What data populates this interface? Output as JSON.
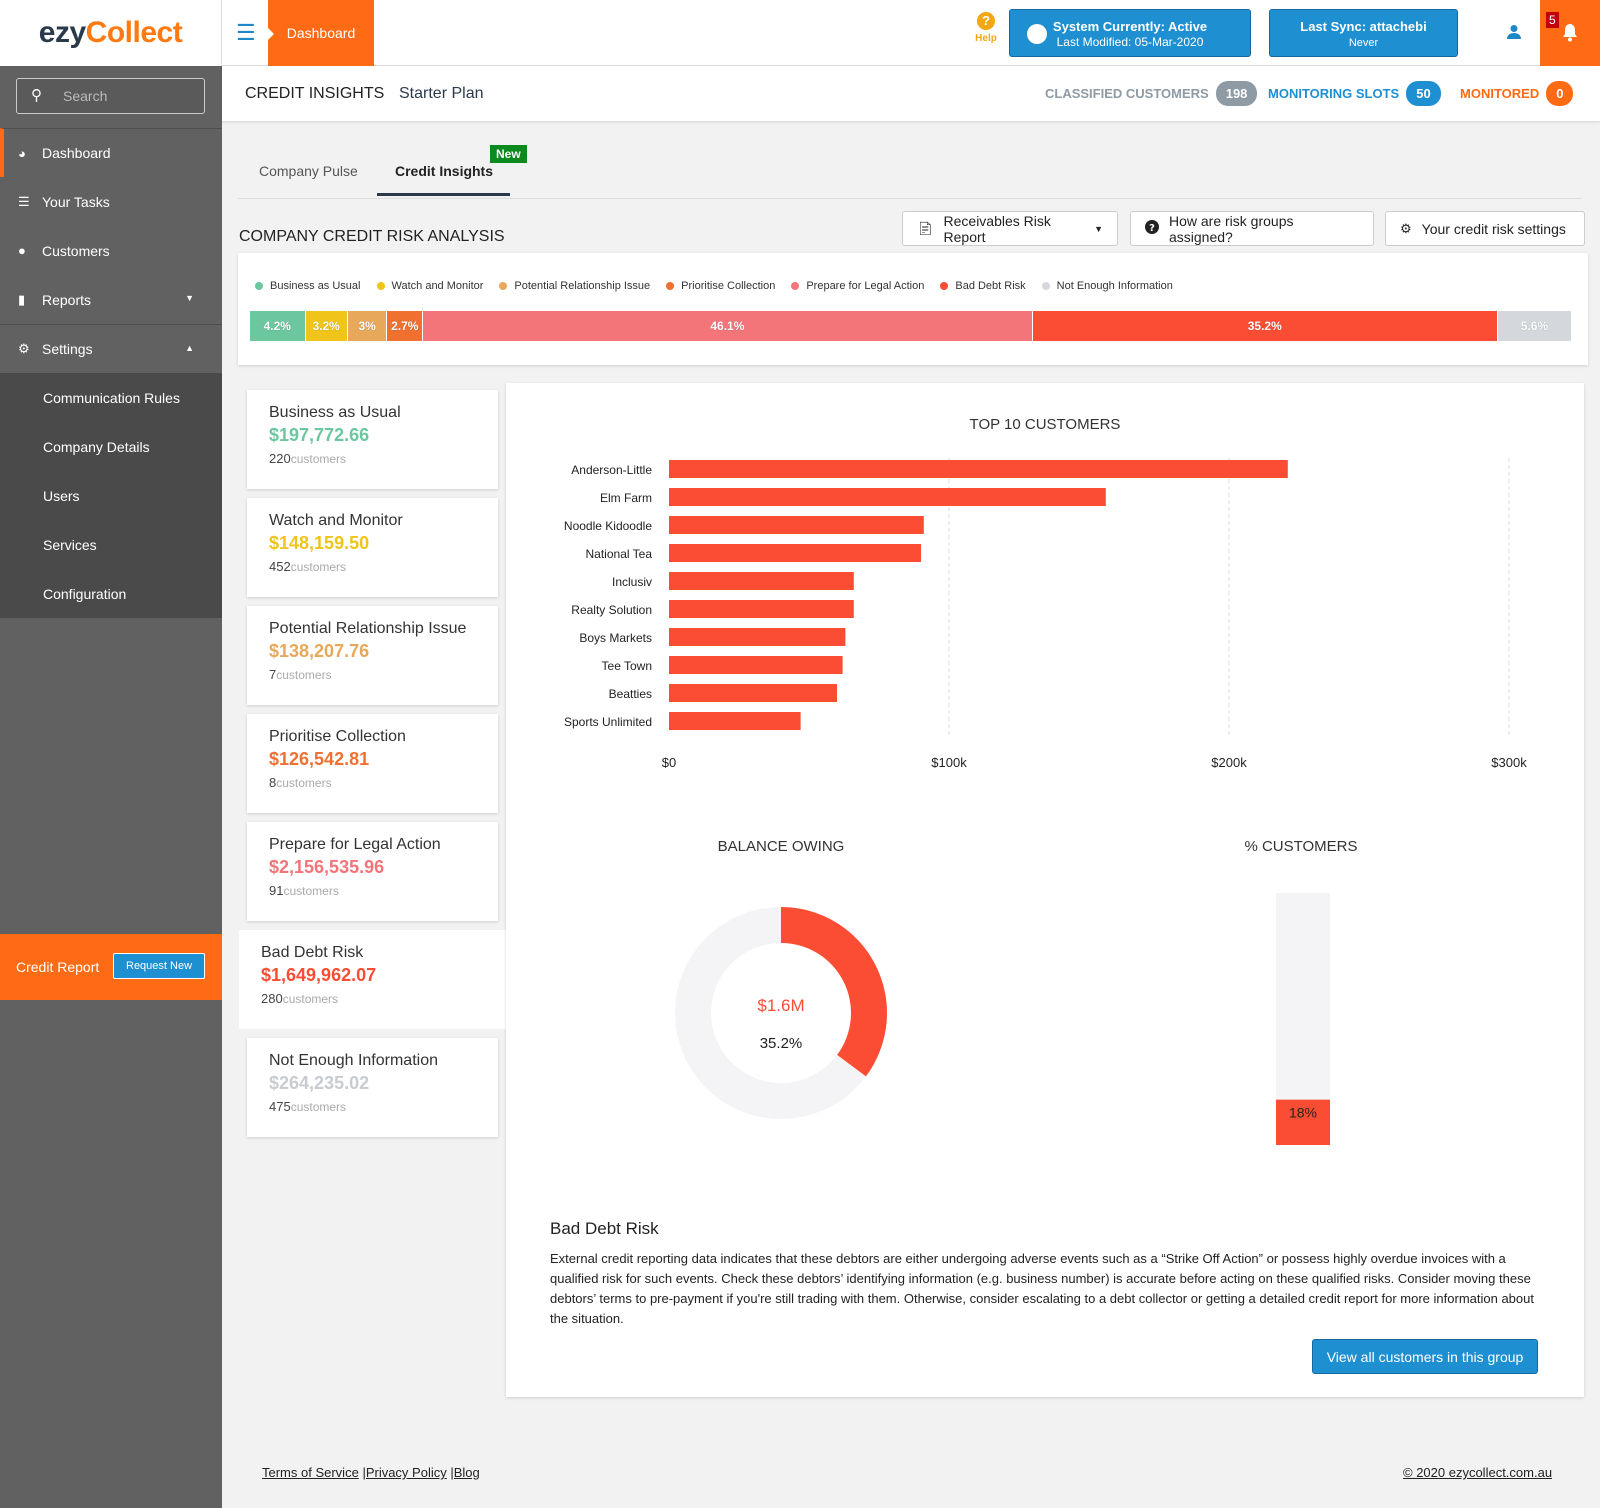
{
  "header": {
    "logo_part1": "ezy",
    "logo_part2": "Collect",
    "active_tab": "Dashboard",
    "help_label": "Help",
    "system_status_title": "System Currently: Active",
    "system_status_sub": "Last Modified: 05-Mar-2020",
    "sync_title": "Last Sync: attachebi",
    "sync_sub": "Never",
    "notification_count": "5"
  },
  "sidebar": {
    "search_placeholder": "Search",
    "items": [
      {
        "label": "Dashboard",
        "icon": "dashboard-icon"
      },
      {
        "label": "Your Tasks",
        "icon": "list-icon"
      },
      {
        "label": "Customers",
        "icon": "users-icon"
      },
      {
        "label": "Reports",
        "icon": "book-icon"
      },
      {
        "label": "Settings",
        "icon": "gears-icon"
      }
    ],
    "settings_sub": [
      "Communication Rules",
      "Company Details",
      "Users",
      "Services",
      "Configuration"
    ],
    "credit_report_label": "Credit Report",
    "request_new_label": "Request New"
  },
  "subheader": {
    "title": "CREDIT INSIGHTS",
    "plan": "Starter Plan",
    "classified_label": "CLASSIFIED CUSTOMERS",
    "classified_count": "198",
    "slots_label": "MONITORING SLOTS",
    "slots_count": "50",
    "monitored_label": "MONITORED",
    "monitored_count": "0"
  },
  "tabs": {
    "tab1": "Company Pulse",
    "tab2": "Credit Insights",
    "new_badge": "New"
  },
  "section": {
    "title": "COMPANY CREDIT RISK ANALYSIS",
    "btn_report": "Receivables Risk Report",
    "btn_help": "How are risk groups assigned?",
    "btn_settings": "Your credit risk settings"
  },
  "risk_groups": [
    {
      "name": "Business as Usual",
      "amount": "$197,772.66",
      "count": "220",
      "pct": 4.2,
      "pct_label": "4.2%",
      "color": "#6cc79f"
    },
    {
      "name": "Watch and Monitor",
      "amount": "$148,159.50",
      "count": "452",
      "pct": 3.2,
      "pct_label": "3.2%",
      "color": "#f0c419"
    },
    {
      "name": "Potential Relationship Issue",
      "amount": "$138,207.76",
      "count": "7",
      "pct": 3,
      "pct_label": "3%",
      "color": "#e8a85a"
    },
    {
      "name": "Prioritise Collection",
      "amount": "$126,542.81",
      "count": "8",
      "pct": 2.7,
      "pct_label": "2.7%",
      "color": "#f07030"
    },
    {
      "name": "Prepare for Legal Action",
      "amount": "$2,156,535.96",
      "count": "91",
      "pct": 46.1,
      "pct_label": "46.1%",
      "color": "#f3757a"
    },
    {
      "name": "Bad Debt Risk",
      "amount": "$1,649,962.07",
      "count": "280",
      "pct": 35.2,
      "pct_label": "35.2%",
      "color": "#fb4d33"
    },
    {
      "name": "Not Enough Information",
      "amount": "$264,235.02",
      "count": "475",
      "pct": 5.6,
      "pct_label": "5.6%",
      "color": "#d4d8dc"
    }
  ],
  "customers_suffix": "customers",
  "chart_titles": {
    "top10": "TOP 10 CUSTOMERS",
    "balance": "BALANCE OWING",
    "pct_customers": "% CUSTOMERS"
  },
  "chart_data": [
    {
      "type": "bar",
      "orientation": "horizontal",
      "title": "TOP 10 CUSTOMERS",
      "categories": [
        "Anderson-Little",
        "Elm Farm",
        "Noodle Kidoodle",
        "National Tea",
        "Inclusiv",
        "Realty Solution",
        "Boys Markets",
        "Tee Town",
        "Beatties",
        "Sports Unlimited"
      ],
      "values": [
        221000,
        156000,
        91000,
        90000,
        66000,
        66000,
        63000,
        62000,
        60000,
        47000
      ],
      "xlim": [
        0,
        300000
      ],
      "xticks": [
        "$0",
        "$100k",
        "$200k",
        "$300k"
      ],
      "color": "#fb4d33",
      "grid": "vertical dashed"
    },
    {
      "type": "pie",
      "variant": "donut",
      "title": "BALANCE OWING",
      "values": [
        35.2,
        64.8
      ],
      "center_value": "$1.6M",
      "center_pct": "35.2%",
      "colors": [
        "#fb4d33",
        "#f4f4f6"
      ]
    },
    {
      "type": "bar",
      "variant": "stacked-vertical",
      "title": "% CUSTOMERS",
      "values": [
        18,
        82
      ],
      "label": "18%",
      "colors": [
        "#fb4d33",
        "#f4f4f6"
      ]
    }
  ],
  "detail": {
    "title": "Bad Debt Risk",
    "text": "External credit reporting data indicates that these debtors are either undergoing adverse events such as a “Strike Off Action” or possess highly overdue invoices with a qualified risk for such events. Check these debtors’ identifying information (e.g. business number) is accurate before acting on these qualified risks. Consider moving these debtors’ terms to pre-payment if you're still trading with them. Otherwise, consider escalating to a debt collector or getting a detailed credit report for more information about the situation.",
    "button": "View all customers in this group"
  },
  "footer": {
    "terms": "Terms of Service",
    "privacy": "|Privacy Policy",
    "blog": "|Blog",
    "copyright": "© 2020 ezycollect.com.au"
  }
}
